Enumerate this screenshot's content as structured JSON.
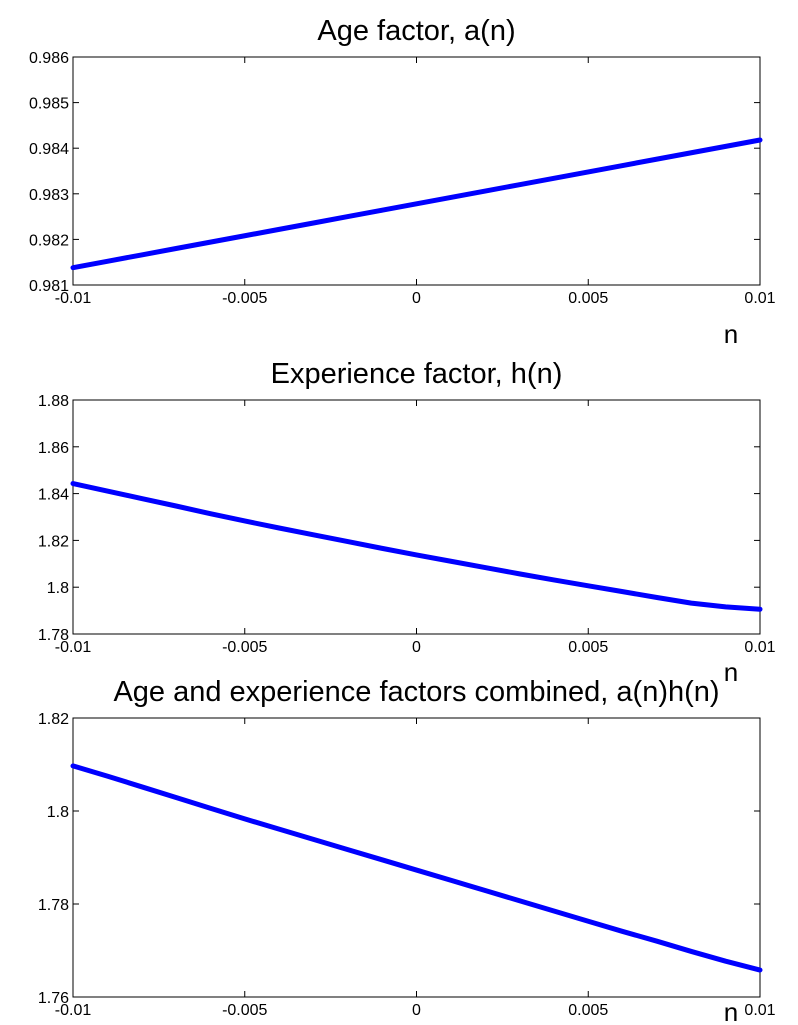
{
  "chart_data": [
    {
      "type": "line",
      "title": "Age factor, a(n)",
      "xlabel": "n",
      "ylabel": "",
      "xlim": [
        -0.01,
        0.01
      ],
      "ylim": [
        0.981,
        0.986
      ],
      "xticks": [
        -0.01,
        -0.005,
        0,
        0.005,
        0.01
      ],
      "xtick_labels": [
        "-0.01",
        "-0.005",
        "0",
        "0.005",
        "0.01"
      ],
      "yticks": [
        0.981,
        0.982,
        0.983,
        0.984,
        0.985,
        0.986
      ],
      "ytick_labels": [
        "0.981",
        "0.982",
        "0.983",
        "0.984",
        "0.985",
        "0.986"
      ],
      "grid": false,
      "line_color": "#0000ff",
      "x": [
        -0.01,
        -0.009,
        -0.008,
        -0.007,
        -0.006,
        -0.005,
        -0.004,
        -0.003,
        -0.002,
        -0.001,
        0,
        0.001,
        0.002,
        0.003,
        0.004,
        0.005,
        0.006,
        0.007,
        0.008,
        0.009,
        0.01
      ],
      "y": [
        0.98138,
        0.98152,
        0.98166,
        0.9818,
        0.98194,
        0.98208,
        0.98222,
        0.98236,
        0.9825,
        0.98264,
        0.98278,
        0.98292,
        0.98306,
        0.9832,
        0.98334,
        0.98348,
        0.98362,
        0.98376,
        0.9839,
        0.98404,
        0.98418
      ]
    },
    {
      "type": "line",
      "title": "Experience factor, h(n)",
      "xlabel": "n",
      "ylabel": "",
      "xlim": [
        -0.01,
        0.01
      ],
      "ylim": [
        1.78,
        1.88
      ],
      "xticks": [
        -0.01,
        -0.005,
        0,
        0.005,
        0.01
      ],
      "xtick_labels": [
        "-0.01",
        "-0.005",
        "0",
        "0.005",
        "0.01"
      ],
      "yticks": [
        1.78,
        1.8,
        1.82,
        1.84,
        1.86,
        1.88
      ],
      "ytick_labels": [
        "1.78",
        "1.8",
        "1.82",
        "1.84",
        "1.86",
        "1.88"
      ],
      "grid": false,
      "line_color": "#0000ff",
      "x": [
        -0.01,
        -0.009,
        -0.008,
        -0.007,
        -0.006,
        -0.005,
        -0.004,
        -0.003,
        -0.002,
        -0.001,
        0,
        0.001,
        0.002,
        0.003,
        0.004,
        0.005,
        0.006,
        0.007,
        0.008,
        0.009,
        0.01
      ],
      "y": [
        1.8443,
        1.8411,
        1.8379,
        1.8347,
        1.8314,
        1.8283,
        1.8253,
        1.8224,
        1.8195,
        1.8166,
        1.8138,
        1.8111,
        1.8084,
        1.8057,
        1.8031,
        1.8006,
        1.7981,
        1.7956,
        1.7932,
        1.7916,
        1.7906
      ]
    },
    {
      "type": "line",
      "title": "Age and experience factors combined, a(n)h(n)",
      "xlabel": "n",
      "ylabel": "",
      "xlim": [
        -0.01,
        0.01
      ],
      "ylim": [
        1.76,
        1.82
      ],
      "xticks": [
        -0.01,
        -0.005,
        0,
        0.005,
        0.01
      ],
      "xtick_labels": [
        "-0.01",
        "-0.005",
        "0",
        "0.005",
        "0.01"
      ],
      "yticks": [
        1.76,
        1.78,
        1.8,
        1.82
      ],
      "ytick_labels": [
        "1.76",
        "1.78",
        "1.8",
        "1.82"
      ],
      "grid": false,
      "line_color": "#0000ff",
      "x": [
        -0.01,
        -0.009,
        -0.008,
        -0.007,
        -0.006,
        -0.005,
        -0.004,
        -0.003,
        -0.002,
        -0.001,
        0,
        0.001,
        0.002,
        0.003,
        0.004,
        0.005,
        0.006,
        0.007,
        0.008,
        0.009,
        0.01
      ],
      "y": [
        1.8097,
        1.8075,
        1.8052,
        1.8029,
        1.8006,
        1.7983,
        1.7961,
        1.7939,
        1.7917,
        1.7895,
        1.7873,
        1.7851,
        1.7829,
        1.7807,
        1.7785,
        1.7763,
        1.7741,
        1.772,
        1.7698,
        1.7677,
        1.7658
      ]
    }
  ]
}
